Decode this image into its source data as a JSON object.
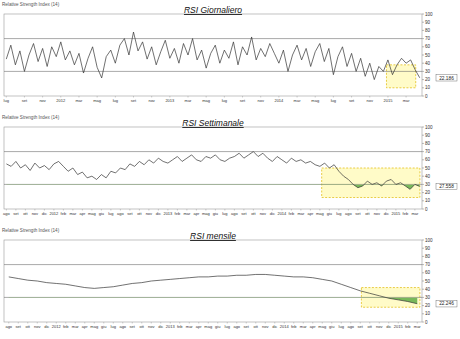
{
  "chart_data": [
    {
      "type": "line",
      "title": "RSI Giornaliero",
      "subtitle": "Relative Strength Index (14)",
      "categories": [
        "lug",
        null,
        null,
        null,
        "set",
        null,
        null,
        null,
        "nov",
        null,
        null,
        null,
        "2012",
        null,
        null,
        null,
        "mar",
        null,
        null,
        null,
        "mag",
        null,
        null,
        null,
        "lug",
        null,
        null,
        null,
        "set",
        null,
        null,
        null,
        "nov",
        null,
        null,
        null,
        "2013",
        null,
        null,
        null,
        "mar",
        null,
        null,
        null,
        "mag",
        null,
        null,
        null,
        "lug",
        null,
        null,
        null,
        "set",
        null,
        null,
        null,
        "nov",
        null,
        null,
        null,
        "2014",
        null,
        null,
        null,
        "mar",
        null,
        null,
        null,
        "mag",
        null,
        null,
        null,
        "lug",
        null,
        null,
        null,
        "set",
        null,
        null,
        null,
        "nov",
        null,
        null,
        null,
        "2015",
        null,
        null,
        null,
        "mar",
        null,
        null,
        null
      ],
      "values": [
        45,
        62,
        38,
        55,
        30,
        50,
        64,
        42,
        58,
        36,
        60,
        48,
        66,
        44,
        55,
        38,
        52,
        28,
        46,
        60,
        35,
        22,
        48,
        56,
        40,
        62,
        70,
        50,
        78,
        55,
        66,
        45,
        60,
        38,
        54,
        68,
        46,
        58,
        40,
        64,
        50,
        70,
        44,
        56,
        34,
        52,
        62,
        40,
        56,
        46,
        66,
        38,
        60,
        50,
        72,
        44,
        58,
        48,
        64,
        52,
        40,
        56,
        30,
        50,
        62,
        44,
        58,
        36,
        54,
        64,
        42,
        58,
        26,
        48,
        60,
        36,
        52,
        30,
        46,
        24,
        40,
        20,
        36,
        30,
        44,
        26,
        38,
        46,
        40,
        44,
        32,
        22.186
      ],
      "color": "#333333",
      "ylim": [
        0,
        100
      ],
      "yticks": [
        0,
        10,
        20,
        30,
        40,
        50,
        60,
        70,
        80,
        90,
        100
      ],
      "levels": [
        30,
        70
      ],
      "grid": false
    },
    {
      "type": "area",
      "title": "RSI Settimanale",
      "subtitle": "Relative Strength Index (14)",
      "categories": [
        "ago",
        null,
        "set",
        null,
        "ott",
        null,
        "nov",
        null,
        "dic",
        null,
        "2012",
        null,
        "feb",
        null,
        "mar",
        null,
        "apr",
        null,
        "mag",
        null,
        "giu",
        null,
        "lug",
        null,
        "ago",
        null,
        "set",
        null,
        "ott",
        null,
        "nov",
        null,
        "dic",
        null,
        "2013",
        null,
        "feb",
        null,
        "mar",
        null,
        "apr",
        null,
        "mag",
        null,
        "giu",
        null,
        "lug",
        null,
        "ago",
        null,
        "set",
        null,
        "ott",
        null,
        "nov",
        null,
        "dic",
        null,
        "2014",
        null,
        "feb",
        null,
        "mar",
        null,
        "apr",
        null,
        "mag",
        null,
        "giu",
        null,
        "lug",
        null,
        "ago",
        null,
        "set",
        null,
        "ott",
        null,
        "nov",
        null,
        "dic",
        null,
        "2015",
        null,
        "feb",
        null,
        "mar",
        null
      ],
      "values": [
        55,
        52,
        58,
        50,
        54,
        47,
        56,
        50,
        53,
        48,
        55,
        58,
        52,
        46,
        50,
        42,
        45,
        38,
        40,
        36,
        42,
        38,
        46,
        44,
        50,
        48,
        55,
        52,
        58,
        54,
        60,
        56,
        62,
        58,
        56,
        60,
        64,
        58,
        62,
        66,
        60,
        58,
        64,
        62,
        66,
        60,
        58,
        62,
        64,
        68,
        62,
        66,
        70,
        64,
        68,
        62,
        58,
        64,
        60,
        56,
        62,
        58,
        60,
        56,
        58,
        54,
        52,
        56,
        50,
        54,
        46,
        40,
        36,
        30,
        26,
        28,
        34,
        30,
        32,
        28,
        34,
        36,
        30,
        32,
        28,
        24,
        30,
        27.558
      ],
      "color": "#333333",
      "ylim": [
        0,
        100
      ],
      "yticks": [
        0,
        10,
        20,
        30,
        40,
        50,
        60,
        70,
        80,
        90,
        100
      ],
      "levels": [
        30,
        70
      ],
      "grid": false
    },
    {
      "type": "area",
      "title": "RSI mensile",
      "subtitle": "Relative Strength Index (14)",
      "categories": [
        "ago",
        "set",
        "ott",
        "nov",
        "dic",
        "2012",
        "feb",
        "mar",
        "apr",
        "mag",
        "giu",
        "lug",
        "ago",
        "set",
        "ott",
        "nov",
        "dic",
        "2013",
        "feb",
        "mar",
        "apr",
        "mag",
        "giu",
        "lug",
        "ago",
        "set",
        "ott",
        "nov",
        "dic",
        "2014",
        "feb",
        "mar",
        "apr",
        "mag",
        "giu",
        "lug",
        "ago",
        "set",
        "ott",
        "nov",
        "dic",
        "2015",
        "feb",
        "mar"
      ],
      "values": [
        55,
        53,
        51,
        50,
        48,
        47,
        46,
        44,
        42,
        41,
        42,
        43,
        45,
        47,
        48,
        50,
        51,
        52,
        53,
        54,
        55,
        55,
        56,
        56,
        57,
        57,
        58,
        58,
        57,
        56,
        55,
        55,
        54,
        52,
        50,
        46,
        42,
        38,
        35,
        32,
        29,
        27,
        25,
        22.246
      ],
      "color": "#333333",
      "ylim": [
        0,
        100
      ],
      "yticks": [
        0,
        10,
        20,
        30,
        40,
        50,
        60,
        70,
        80,
        90,
        100
      ],
      "levels": [
        30,
        70
      ],
      "grid": false
    }
  ]
}
